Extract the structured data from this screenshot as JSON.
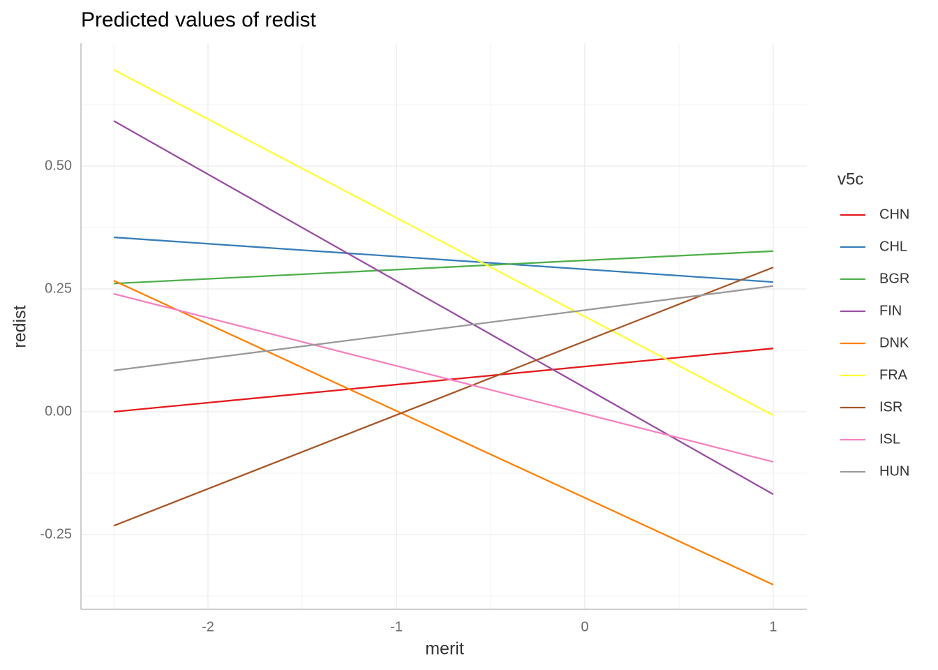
{
  "chart_data": {
    "type": "line",
    "title": "Predicted values of redist",
    "x_label": "merit",
    "y_label": "redist",
    "legend_title": "v5c",
    "x": [
      -2.5,
      1
    ],
    "series": [
      {
        "name": "CHN",
        "color": "#e41a1c",
        "values": [
          0.0,
          0.129
        ]
      },
      {
        "name": "CHL",
        "color": "#377eb8",
        "values": [
          0.355,
          0.264
        ]
      },
      {
        "name": "BGR",
        "color": "#4daf4a",
        "values": [
          0.261,
          0.327
        ]
      },
      {
        "name": "FIN",
        "color": "#984ea3",
        "values": [
          0.592,
          -0.168
        ]
      },
      {
        "name": "DNK",
        "color": "#ff7f00",
        "values": [
          0.267,
          -0.352
        ]
      },
      {
        "name": "FRA",
        "color": "#ffff33",
        "values": [
          0.696,
          -0.007
        ]
      },
      {
        "name": "ISR",
        "color": "#a65628",
        "values": [
          -0.232,
          0.294
        ]
      },
      {
        "name": "ISL",
        "color": "#f781bf",
        "values": [
          0.24,
          -0.102
        ]
      },
      {
        "name": "HUN",
        "color": "#999999",
        "values": [
          0.084,
          0.256
        ]
      }
    ],
    "xlim": [
      -2.674,
      1.178
    ],
    "ylim": [
      -0.402,
      0.75
    ],
    "xticks": [
      -2,
      -1,
      0,
      1
    ],
    "yticks": [
      {
        "value": -0.25,
        "label": "-0.25"
      },
      {
        "value": 0,
        "label": "0.00"
      },
      {
        "value": 0.25,
        "label": "0.25"
      },
      {
        "value": 0.5,
        "label": "0.50"
      }
    ],
    "grid": true,
    "legend": "right"
  }
}
